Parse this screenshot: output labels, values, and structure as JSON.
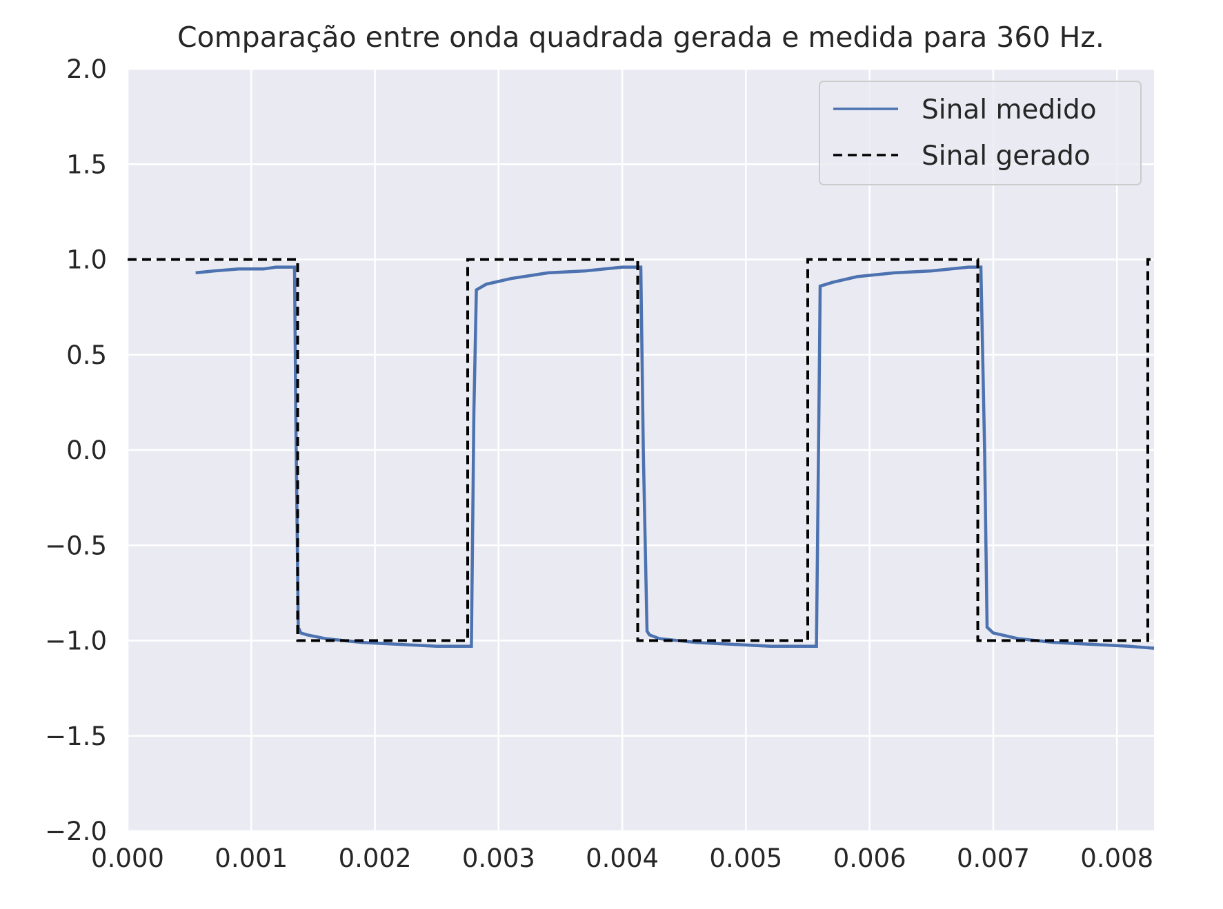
{
  "chart_data": {
    "type": "line",
    "title": "Comparação entre onda quadrada gerada e medida para 360 Hz.",
    "xlabel": "",
    "ylabel": "",
    "xlim": [
      0.0,
      0.0083
    ],
    "ylim": [
      -2.0,
      2.0
    ],
    "grid": true,
    "legend_position": "top-right",
    "x_ticks": [
      "0.000",
      "0.001",
      "0.002",
      "0.003",
      "0.004",
      "0.005",
      "0.006",
      "0.007",
      "0.008"
    ],
    "y_ticks": [
      "2.0",
      "1.5",
      "1.0",
      "0.5",
      "0.0",
      "−0.5",
      "−1.0",
      "−1.5",
      "−2.0"
    ],
    "series": [
      {
        "name": "Sinal medido",
        "color": "#4c72b0",
        "style": "solid",
        "x": [
          0.00055,
          0.0007,
          0.0009,
          0.0011,
          0.0012,
          0.00135,
          0.00136,
          0.00138,
          0.0014,
          0.00145,
          0.0016,
          0.0019,
          0.0022,
          0.0025,
          0.0027,
          0.00278,
          0.0028,
          0.00282,
          0.0029,
          0.0031,
          0.0034,
          0.0037,
          0.004,
          0.00415,
          0.00417,
          0.0042,
          0.00422,
          0.0043,
          0.0046,
          0.0049,
          0.0052,
          0.0055,
          0.00557,
          0.00559,
          0.0056,
          0.0057,
          0.0059,
          0.0062,
          0.0065,
          0.0068,
          0.0069,
          0.00693,
          0.00695,
          0.007,
          0.0072,
          0.0075,
          0.0078,
          0.0081,
          0.0083
        ],
        "values": [
          0.93,
          0.94,
          0.95,
          0.95,
          0.96,
          0.96,
          0.2,
          -0.93,
          -0.96,
          -0.97,
          -0.99,
          -1.01,
          -1.02,
          -1.03,
          -1.03,
          -1.03,
          0.2,
          0.84,
          0.87,
          0.9,
          0.93,
          0.94,
          0.96,
          0.96,
          0.0,
          -0.95,
          -0.97,
          -0.99,
          -1.01,
          -1.02,
          -1.03,
          -1.03,
          -1.03,
          0.2,
          0.86,
          0.88,
          0.91,
          0.93,
          0.94,
          0.96,
          0.96,
          0.0,
          -0.93,
          -0.96,
          -0.99,
          -1.01,
          -1.02,
          -1.03,
          -1.04
        ]
      },
      {
        "name": "Sinal gerado",
        "color": "#000000",
        "style": "dashed",
        "x": [
          0.0,
          0.001375,
          0.001375,
          0.00275,
          0.00275,
          0.004125,
          0.004125,
          0.0055,
          0.0055,
          0.006875,
          0.006875,
          0.00825,
          0.00825,
          0.0083
        ],
        "values": [
          1,
          1,
          -1,
          -1,
          1,
          1,
          -1,
          -1,
          1,
          1,
          -1,
          -1,
          1,
          1
        ]
      }
    ]
  }
}
